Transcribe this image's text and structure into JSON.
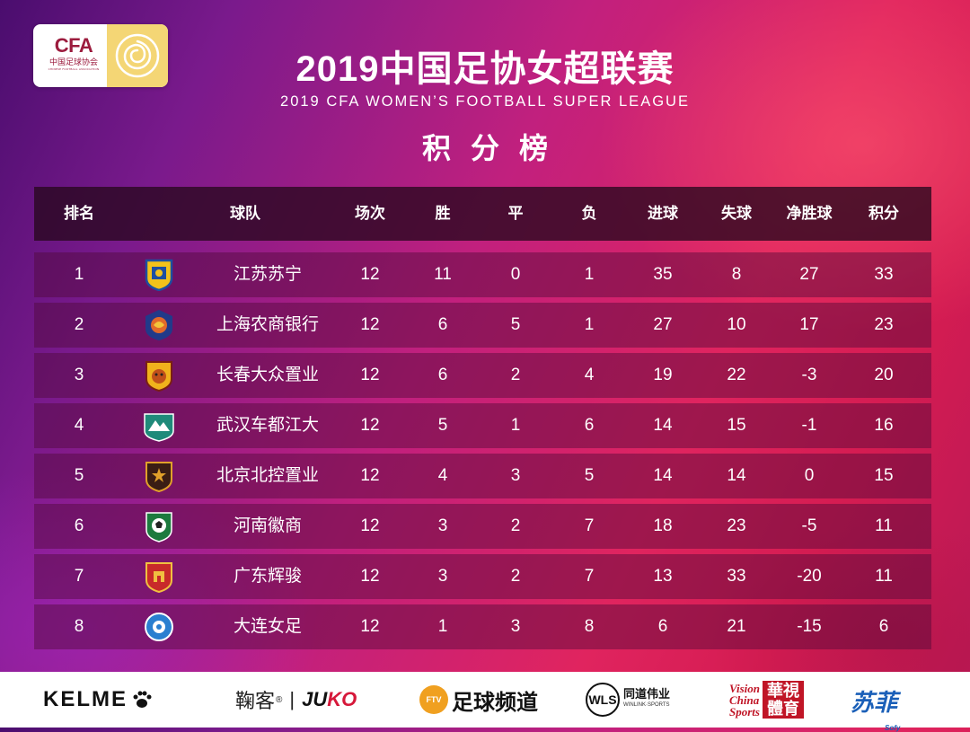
{
  "header": {
    "logo_cfa": "CFA",
    "logo_cfa_cn": "中国足球协会",
    "logo_cfa_en": "CHINESE FOOTBALL ASSOCIATION",
    "title_cn": "2019中国足协女超联赛",
    "title_en": "2019 CFA WOMEN’S FOOTBALL SUPER LEAGUE",
    "subtitle": "积分榜"
  },
  "table": {
    "columns": [
      "排名",
      "球队",
      "场次",
      "胜",
      "平",
      "负",
      "进球",
      "失球",
      "净胜球",
      "积分"
    ],
    "rows": [
      {
        "rank": "1",
        "badge": "shield-icon-blue-yellow",
        "team": "江苏苏宁",
        "played": "12",
        "won": "11",
        "drawn": "0",
        "lost": "1",
        "gf": "35",
        "ga": "8",
        "gd": "27",
        "pts": "33"
      },
      {
        "rank": "2",
        "badge": "dragon-crest-icon",
        "team": "上海农商银行",
        "played": "12",
        "won": "6",
        "drawn": "5",
        "lost": "1",
        "gf": "27",
        "ga": "10",
        "gd": "17",
        "pts": "23"
      },
      {
        "rank": "3",
        "badge": "tiger-crest-icon",
        "team": "长春大众置业",
        "played": "12",
        "won": "6",
        "drawn": "2",
        "lost": "4",
        "gf": "19",
        "ga": "22",
        "gd": "-3",
        "pts": "20"
      },
      {
        "rank": "4",
        "badge": "mountain-crest-icon",
        "team": "武汉车都江大",
        "played": "12",
        "won": "5",
        "drawn": "1",
        "lost": "6",
        "gf": "14",
        "ga": "15",
        "gd": "-1",
        "pts": "16"
      },
      {
        "rank": "5",
        "badge": "star-crest-icon",
        "team": "北京北控置业",
        "played": "12",
        "won": "4",
        "drawn": "3",
        "lost": "5",
        "gf": "14",
        "ga": "14",
        "gd": "0",
        "pts": "15"
      },
      {
        "rank": "6",
        "badge": "ball-crest-icon",
        "team": "河南徽商",
        "played": "12",
        "won": "3",
        "drawn": "2",
        "lost": "7",
        "gf": "18",
        "ga": "23",
        "gd": "-5",
        "pts": "11"
      },
      {
        "rank": "7",
        "badge": "castle-crest-icon",
        "team": "广东辉骏",
        "played": "12",
        "won": "3",
        "drawn": "2",
        "lost": "7",
        "gf": "13",
        "ga": "33",
        "gd": "-20",
        "pts": "11"
      },
      {
        "rank": "8",
        "badge": "round-crest-icon",
        "team": "大连女足",
        "played": "12",
        "won": "1",
        "drawn": "3",
        "lost": "8",
        "gf": "6",
        "ga": "21",
        "gd": "-15",
        "pts": "6"
      }
    ]
  },
  "sponsors": {
    "kelme": "KELME",
    "juko_cn": "鞠客",
    "juko_en_a": "JU",
    "juko_en_b": "KO",
    "ftv_icon": "FTV",
    "ftv_cn": "足球频道",
    "wls_mark": "WLS",
    "wls_cn": "同道伟业",
    "wls_en": "WINLINK·SPORTS",
    "vision_en_1": "Vision",
    "vision_en_2": "China",
    "vision_en_3": "Sports",
    "vision_cn": "華視體育",
    "sofy_cn": "苏菲",
    "sofy_en": "Sofy"
  },
  "colors": {
    "header_bg": "#2a0820",
    "row_bg": "#50083a",
    "accent_red": "#c01526",
    "cfa_red": "#9c1c3e",
    "rose_gold": "#f4d675"
  }
}
